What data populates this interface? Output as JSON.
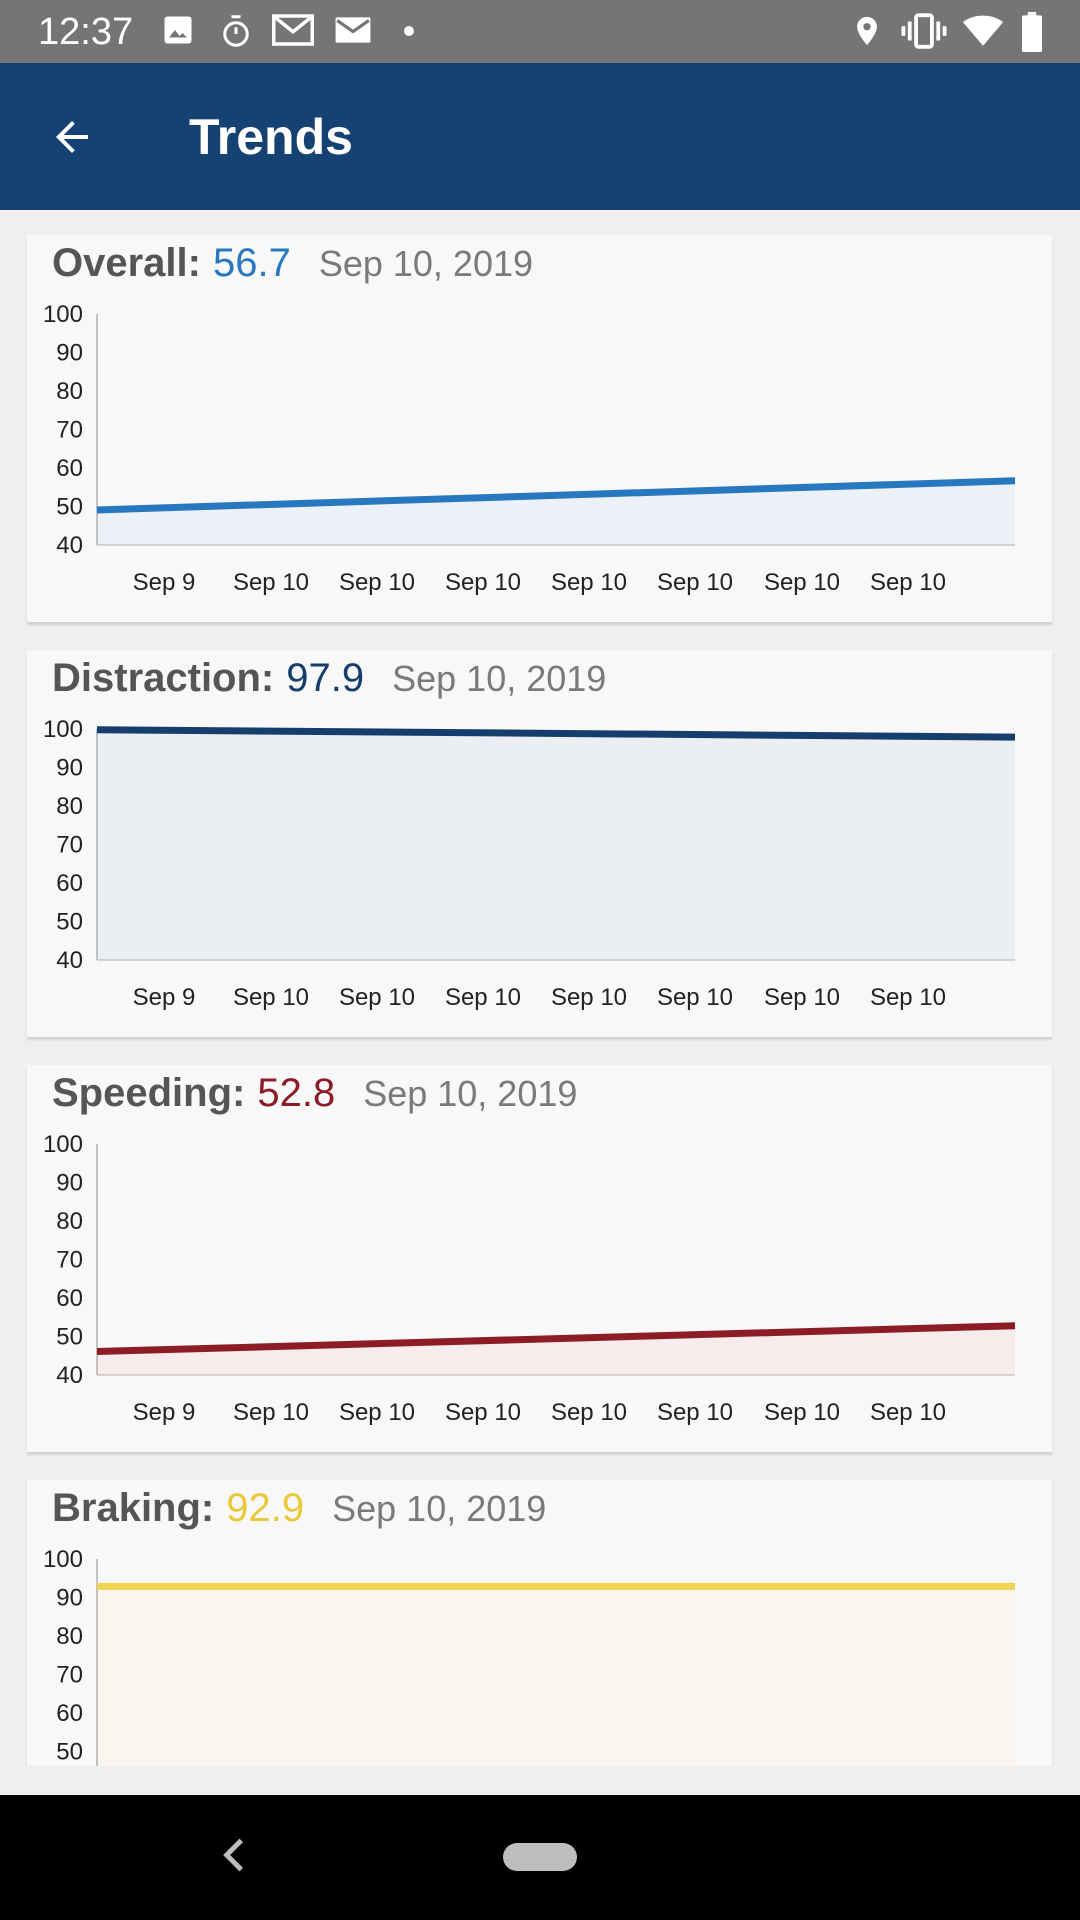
{
  "status_bar": {
    "time": "12:37",
    "icons_left": [
      "image-icon",
      "stopwatch-icon",
      "gmail-icon",
      "mail-icon",
      "dot-icon"
    ],
    "icons_right": [
      "location-icon",
      "vibrate-icon",
      "wifi-icon",
      "battery-icon"
    ]
  },
  "app_bar": {
    "title": "Trends",
    "back_icon": "arrow-back-icon"
  },
  "axis": {
    "y_ticks": [
      "100",
      "90",
      "80",
      "70",
      "60",
      "50",
      "40"
    ],
    "x_ticks": [
      "Sep 9",
      "Sep 10",
      "Sep 10",
      "Sep 10",
      "Sep 10",
      "Sep 10",
      "Sep 10",
      "Sep 10"
    ]
  },
  "cards": [
    {
      "label": "Overall:",
      "value": "56.7",
      "date": "Sep 10, 2019",
      "color": "#2878c0",
      "fill": "#ecf1f8"
    },
    {
      "label": "Distraction:",
      "value": "97.9",
      "date": "Sep 10, 2019",
      "color": "#163e6c",
      "fill": "#ebeef2"
    },
    {
      "label": "Speeding:",
      "value": "52.8",
      "date": "Sep 10, 2019",
      "color": "#8c1c26",
      "fill": "#f6ecec"
    },
    {
      "label": "Braking:",
      "value": "92.9",
      "date": "Sep 10, 2019",
      "color": "#f0d353",
      "fill": "#f8f6ef"
    }
  ],
  "chart_data": [
    {
      "type": "area",
      "x": [
        "Sep 9",
        "Sep 10"
      ],
      "y": [
        49.1,
        56.7
      ],
      "ylim": [
        40,
        100
      ]
    },
    {
      "type": "area",
      "x": [
        "Sep 9",
        "Sep 10"
      ],
      "y": [
        99.8,
        97.9
      ],
      "ylim": [
        40,
        100
      ]
    },
    {
      "type": "area",
      "x": [
        "Sep 9",
        "Sep 10"
      ],
      "y": [
        46.1,
        52.8
      ],
      "ylim": [
        40,
        100
      ]
    },
    {
      "type": "area",
      "x": [
        "Sep 9",
        "Sep 10"
      ],
      "y": [
        92.9,
        92.9
      ],
      "ylim": [
        40,
        100
      ]
    }
  ],
  "nav_bar": {
    "back_icon": "nav-back-icon",
    "home_icon": "nav-home-pill"
  }
}
